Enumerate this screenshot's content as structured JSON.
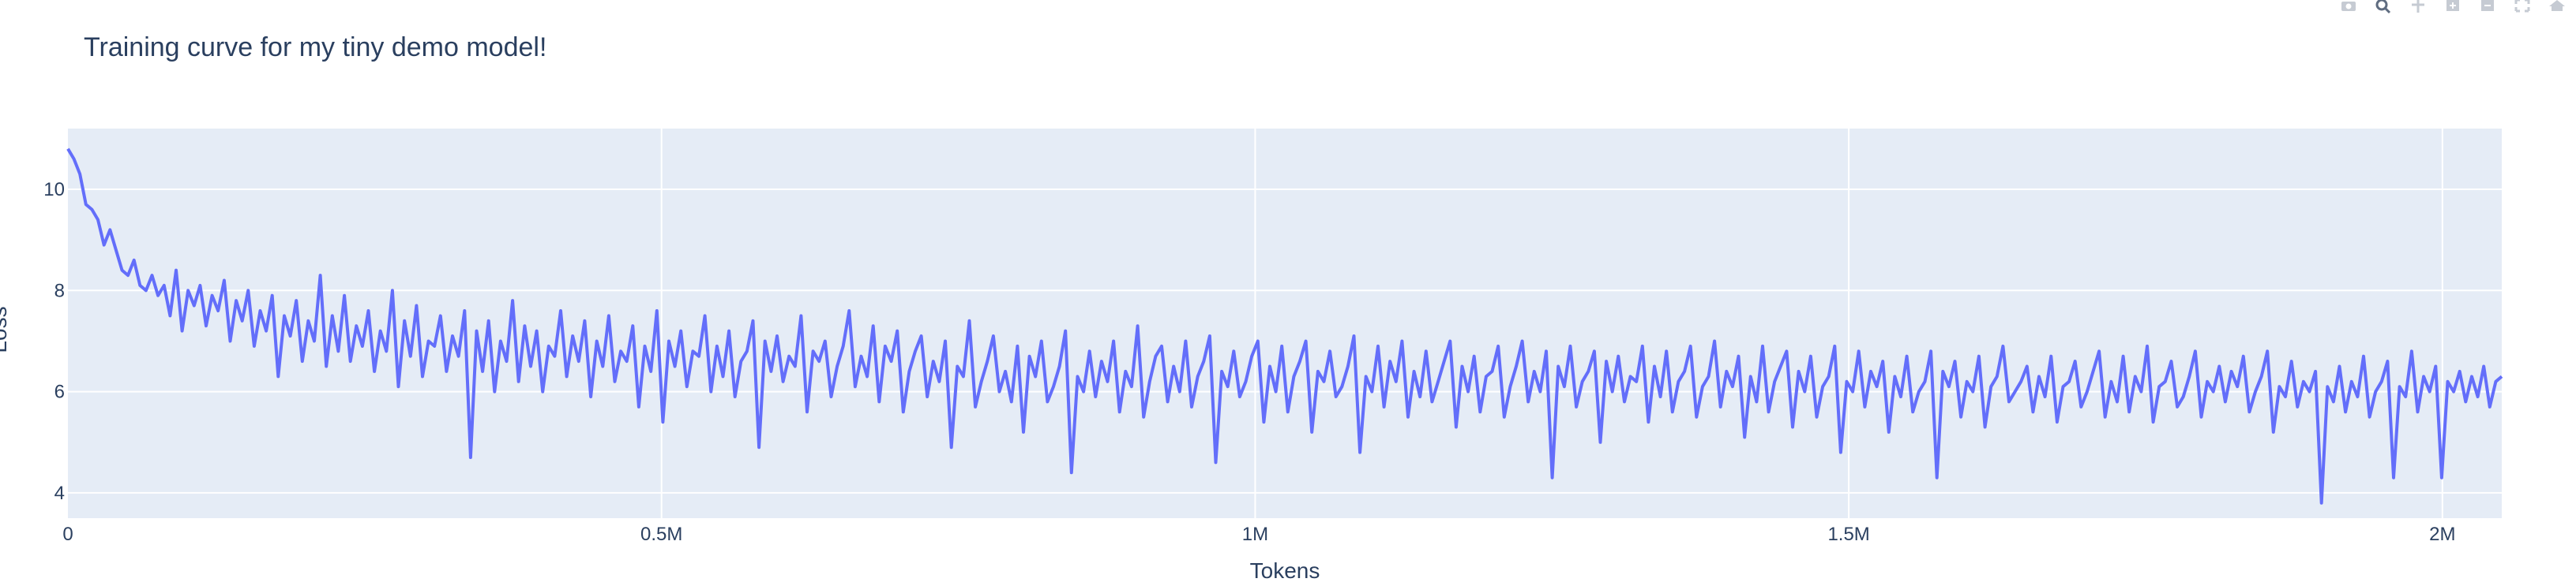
{
  "chart_data": {
    "type": "line",
    "title": "Training curve for my tiny demo model!",
    "xlabel": "Tokens",
    "ylabel": "Loss",
    "xlim": [
      0,
      2050000
    ],
    "ylim": [
      3.5,
      11.2
    ],
    "x_ticks": [
      0,
      500000,
      1000000,
      1500000,
      2000000
    ],
    "x_tick_labels": [
      "0",
      "0.5M",
      "1M",
      "1.5M",
      "2M"
    ],
    "y_ticks": [
      4,
      6,
      8,
      10
    ],
    "y_tick_labels": [
      "4",
      "6",
      "8",
      "10"
    ],
    "grid": true,
    "legend": "none",
    "colors": {
      "line": "#636efa",
      "plot_bg": "#e5ecf6",
      "grid": "#ffffff",
      "text": "#2a3f5f"
    },
    "series": [
      {
        "values": [
          10.8,
          10.6,
          10.3,
          9.7,
          9.6,
          9.4,
          8.9,
          9.2,
          8.8,
          8.4,
          8.3,
          8.6,
          8.1,
          8.0,
          8.3,
          7.9,
          8.1,
          7.5,
          8.4,
          7.2,
          8.0,
          7.7,
          8.1,
          7.3,
          7.9,
          7.6,
          8.2,
          7.0,
          7.8,
          7.4,
          8.0,
          6.9,
          7.6,
          7.2,
          7.9,
          6.3,
          7.5,
          7.1,
          7.8,
          6.6,
          7.4,
          7.0,
          8.3,
          6.5,
          7.5,
          6.8,
          7.9,
          6.6,
          7.3,
          6.9,
          7.6,
          6.4,
          7.2,
          6.8,
          8.0,
          6.1,
          7.4,
          6.7,
          7.7,
          6.3,
          7.0,
          6.9,
          7.5,
          6.4,
          7.1,
          6.7,
          7.6,
          4.7,
          7.2,
          6.4,
          7.4,
          6.0,
          7.0,
          6.6,
          7.8,
          6.2,
          7.3,
          6.5,
          7.2,
          6.0,
          6.9,
          6.7,
          7.6,
          6.3,
          7.1,
          6.6,
          7.4,
          5.9,
          7.0,
          6.5,
          7.5,
          6.2,
          6.8,
          6.6,
          7.3,
          5.7,
          6.9,
          6.4,
          7.6,
          5.4,
          7.0,
          6.5,
          7.2,
          6.1,
          6.8,
          6.7,
          7.5,
          6.0,
          6.9,
          6.3,
          7.2,
          5.9,
          6.6,
          6.8,
          7.4,
          4.9,
          7.0,
          6.4,
          7.1,
          6.2,
          6.7,
          6.5,
          7.5,
          5.6,
          6.8,
          6.6,
          7.0,
          5.9,
          6.5,
          6.9,
          7.6,
          6.1,
          6.7,
          6.3,
          7.3,
          5.8,
          6.9,
          6.6,
          7.2,
          5.6,
          6.4,
          6.8,
          7.1,
          5.9,
          6.6,
          6.2,
          7.0,
          4.9,
          6.5,
          6.3,
          7.4,
          5.7,
          6.2,
          6.6,
          7.1,
          6.0,
          6.4,
          5.8,
          6.9,
          5.2,
          6.7,
          6.3,
          7.0,
          5.8,
          6.1,
          6.5,
          7.2,
          4.4,
          6.3,
          6.0,
          6.8,
          5.9,
          6.6,
          6.2,
          7.0,
          5.6,
          6.4,
          6.1,
          7.3,
          5.5,
          6.2,
          6.7,
          6.9,
          5.8,
          6.5,
          6.0,
          7.0,
          5.7,
          6.3,
          6.6,
          7.1,
          4.6,
          6.4,
          6.1,
          6.8,
          5.9,
          6.2,
          6.7,
          7.0,
          5.4,
          6.5,
          6.0,
          6.9,
          5.6,
          6.3,
          6.6,
          7.0,
          5.2,
          6.4,
          6.2,
          6.8,
          5.9,
          6.1,
          6.5,
          7.1,
          4.8,
          6.3,
          6.0,
          6.9,
          5.7,
          6.6,
          6.2,
          7.0,
          5.5,
          6.4,
          5.9,
          6.8,
          5.8,
          6.2,
          6.6,
          7.0,
          5.3,
          6.5,
          6.0,
          6.7,
          5.6,
          6.3,
          6.4,
          6.9,
          5.5,
          6.1,
          6.5,
          7.0,
          5.8,
          6.4,
          6.0,
          6.8,
          4.3,
          6.5,
          6.1,
          6.9,
          5.7,
          6.2,
          6.4,
          6.8,
          5.0,
          6.6,
          6.0,
          6.7,
          5.8,
          6.3,
          6.2,
          6.9,
          5.4,
          6.5,
          5.9,
          6.8,
          5.6,
          6.2,
          6.4,
          6.9,
          5.5,
          6.1,
          6.3,
          7.0,
          5.7,
          6.4,
          6.1,
          6.7,
          5.1,
          6.3,
          5.8,
          6.9,
          5.6,
          6.2,
          6.5,
          6.8,
          5.3,
          6.4,
          6.0,
          6.7,
          5.5,
          6.1,
          6.3,
          6.9,
          4.8,
          6.2,
          6.0,
          6.8,
          5.7,
          6.4,
          6.1,
          6.6,
          5.2,
          6.3,
          5.9,
          6.7,
          5.6,
          6.0,
          6.2,
          6.8,
          4.3,
          6.4,
          6.1,
          6.6,
          5.5,
          6.2,
          6.0,
          6.7,
          5.3,
          6.1,
          6.3,
          6.9,
          5.8,
          6.0,
          6.2,
          6.5,
          5.6,
          6.3,
          5.9,
          6.7,
          5.4,
          6.1,
          6.2,
          6.6,
          5.7,
          6.0,
          6.4,
          6.8,
          5.5,
          6.2,
          5.8,
          6.7,
          5.6,
          6.3,
          6.0,
          6.9,
          5.4,
          6.1,
          6.2,
          6.6,
          5.7,
          5.9,
          6.3,
          6.8,
          5.5,
          6.2,
          6.0,
          6.5,
          5.8,
          6.4,
          6.1,
          6.7,
          5.6,
          6.0,
          6.3,
          6.8,
          5.2,
          6.1,
          5.9,
          6.6,
          5.7,
          6.2,
          6.0,
          6.4,
          3.8,
          6.1,
          5.8,
          6.5,
          5.6,
          6.2,
          5.9,
          6.7,
          5.5,
          6.0,
          6.2,
          6.6,
          4.3,
          6.1,
          5.9,
          6.8,
          5.6,
          6.3,
          6.0,
          6.5,
          4.3,
          6.2,
          6.0,
          6.4,
          5.8,
          6.3,
          5.9,
          6.5,
          5.7,
          6.2,
          6.3
        ]
      }
    ]
  },
  "modebar": {
    "buttons": [
      {
        "name": "camera-icon"
      },
      {
        "name": "zoom-icon"
      },
      {
        "name": "pan-icon"
      },
      {
        "name": "zoom-in-icon"
      },
      {
        "name": "zoom-out-icon"
      },
      {
        "name": "autoscale-icon"
      },
      {
        "name": "home-icon"
      }
    ]
  }
}
